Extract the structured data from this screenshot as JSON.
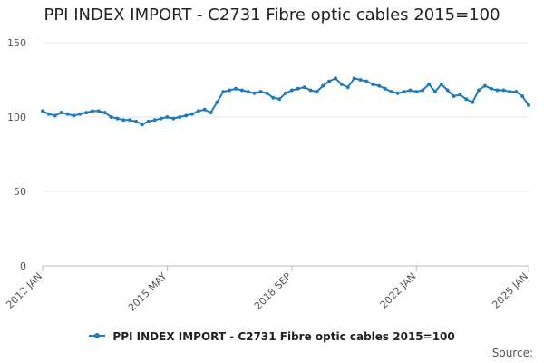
{
  "chart_data": {
    "type": "line",
    "title": "PPI INDEX IMPORT - C2731 Fibre optic cables 2015=100",
    "xlabel": "",
    "ylabel": "",
    "ylim": [
      0,
      150
    ],
    "yticks": [
      0,
      50,
      100,
      150
    ],
    "xlim": [
      "2012-01",
      "2025-01"
    ],
    "xticks": [
      "2012 JAN",
      "2015 MAY",
      "2018 SEP",
      "2022 JAN",
      "2025 JAN"
    ],
    "grid": true,
    "legend": "bottom",
    "source_label": "Source:",
    "series": [
      {
        "name": "PPI INDEX IMPORT - C2731 Fibre optic cables 2015=100",
        "color": "#1f7bbf",
        "x": [
          "2012-01",
          "2012-03",
          "2012-05",
          "2012-07",
          "2012-09",
          "2012-11",
          "2013-01",
          "2013-03",
          "2013-05",
          "2013-07",
          "2013-09",
          "2013-11",
          "2014-01",
          "2014-03",
          "2014-05",
          "2014-07",
          "2014-09",
          "2014-11",
          "2015-01",
          "2015-03",
          "2015-05",
          "2015-07",
          "2015-09",
          "2015-11",
          "2016-01",
          "2016-03",
          "2016-05",
          "2016-07",
          "2016-09",
          "2016-11",
          "2017-01",
          "2017-03",
          "2017-05",
          "2017-07",
          "2017-09",
          "2017-11",
          "2018-01",
          "2018-03",
          "2018-05",
          "2018-07",
          "2018-09",
          "2018-11",
          "2019-01",
          "2019-03",
          "2019-05",
          "2019-07",
          "2019-09",
          "2019-11",
          "2020-01",
          "2020-03",
          "2020-05",
          "2020-07",
          "2020-09",
          "2020-11",
          "2021-01",
          "2021-03",
          "2021-05",
          "2021-07",
          "2021-09",
          "2021-11",
          "2022-01",
          "2022-03",
          "2022-05",
          "2022-07",
          "2022-09",
          "2022-11",
          "2023-01",
          "2023-03",
          "2023-05",
          "2023-07",
          "2023-09",
          "2023-11",
          "2024-01",
          "2024-03",
          "2024-05",
          "2024-07",
          "2024-09",
          "2024-11",
          "2025-01"
        ],
        "values": [
          104,
          102,
          101,
          103,
          102,
          101,
          102,
          103,
          104,
          104,
          103,
          100,
          99,
          98,
          98,
          97,
          95,
          97,
          98,
          99,
          100,
          99,
          100,
          101,
          102,
          104,
          105,
          103,
          110,
          117,
          118,
          119,
          118,
          117,
          116,
          117,
          116,
          113,
          112,
          116,
          118,
          119,
          120,
          118,
          117,
          121,
          124,
          126,
          122,
          120,
          126,
          125,
          124,
          122,
          121,
          119,
          117,
          116,
          117,
          118,
          117,
          118,
          122,
          117,
          122,
          118,
          114,
          115,
          112,
          110,
          118,
          121,
          119,
          118,
          118,
          117,
          117,
          114,
          108
        ]
      }
    ]
  }
}
